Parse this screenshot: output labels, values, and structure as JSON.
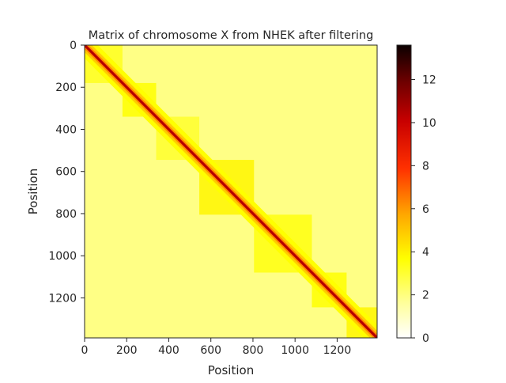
{
  "chart_data": {
    "type": "heatmap",
    "title": "Matrix of chromosome X from NHEK after filtering",
    "xlabel": "Position",
    "ylabel": "Position",
    "matrix_size": 1390,
    "xlim": [
      0,
      1390
    ],
    "ylim": [
      1390,
      0
    ],
    "x_ticks": [
      0,
      200,
      400,
      600,
      800,
      1000,
      1200
    ],
    "y_ticks": [
      0,
      200,
      400,
      600,
      800,
      1000,
      1200
    ],
    "colormap": "hot_r",
    "colorbar": {
      "min": 0,
      "max": 13.6,
      "ticks": [
        0,
        2,
        4,
        6,
        8,
        10,
        12
      ]
    },
    "domain_blocks": [
      {
        "start": 0,
        "end": 180,
        "intensity": 0.32
      },
      {
        "start": 180,
        "end": 340,
        "intensity": 0.36
      },
      {
        "start": 340,
        "end": 545,
        "intensity": 0.3
      },
      {
        "start": 545,
        "end": 805,
        "intensity": 0.38
      },
      {
        "start": 805,
        "end": 1080,
        "intensity": 0.34
      },
      {
        "start": 1080,
        "end": 1245,
        "intensity": 0.36
      },
      {
        "start": 1245,
        "end": 1390,
        "intensity": 0.38
      }
    ],
    "diagonal_value": 10.5,
    "grid": false,
    "legend": "none"
  }
}
